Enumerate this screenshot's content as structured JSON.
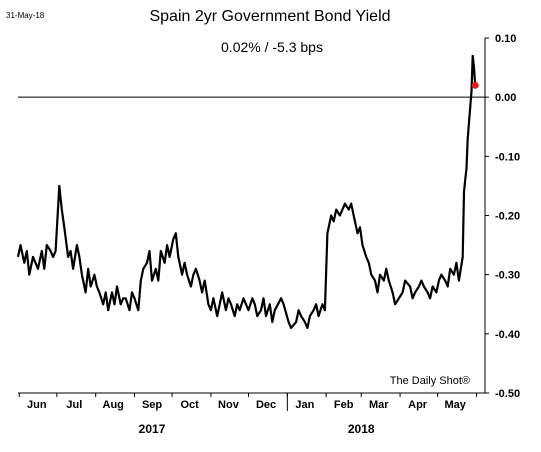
{
  "chart_data": {
    "type": "line",
    "title": "Spain 2yr Government Bond Yield",
    "subtitle": "0.02%  /  -5.3 bps",
    "date_stamp": "31-May-18",
    "source": "The Daily Shot®",
    "ylim": [
      -0.5,
      0.1
    ],
    "y_ticks": [
      0.1,
      0.0,
      -0.1,
      -0.2,
      -0.3,
      -0.4,
      -0.5
    ],
    "y_tick_labels": [
      "0.10",
      "0.00",
      "-0.10",
      "-0.20",
      "-0.30",
      "-0.40",
      "-0.50"
    ],
    "reference_line": 0.0,
    "grid": false,
    "x_months": [
      "Jun",
      "Jul",
      "Aug",
      "Sep",
      "Oct",
      "Nov",
      "Dec",
      "Jan",
      "Feb",
      "Mar",
      "Apr",
      "May"
    ],
    "x_years": [
      "2017",
      "2018"
    ],
    "line_color": "#000000",
    "marker_color": "#e8191b",
    "last_value": 0.02,
    "series": [
      {
        "x": [
          "2017-05-31",
          "2017-06-02",
          "2017-06-05",
          "2017-06-07",
          "2017-06-09",
          "2017-06-12",
          "2017-06-14",
          "2017-06-16",
          "2017-06-19",
          "2017-06-21",
          "2017-06-23",
          "2017-06-26",
          "2017-06-28",
          "2017-06-30",
          "2017-07-03",
          "2017-07-05",
          "2017-07-07",
          "2017-07-10",
          "2017-07-12",
          "2017-07-14",
          "2017-07-17",
          "2017-07-19",
          "2017-07-21",
          "2017-07-24",
          "2017-07-26",
          "2017-07-28",
          "2017-07-31",
          "2017-08-02",
          "2017-08-04",
          "2017-08-07",
          "2017-08-09",
          "2017-08-11",
          "2017-08-14",
          "2017-08-16",
          "2017-08-18",
          "2017-08-21",
          "2017-08-23",
          "2017-08-25",
          "2017-08-28",
          "2017-08-30",
          "2017-09-01",
          "2017-09-04",
          "2017-09-06",
          "2017-09-08",
          "2017-09-11",
          "2017-09-13",
          "2017-09-15",
          "2017-09-18",
          "2017-09-20",
          "2017-09-22",
          "2017-09-25",
          "2017-09-27",
          "2017-09-29",
          "2017-10-02",
          "2017-10-04",
          "2017-10-06",
          "2017-10-09",
          "2017-10-11",
          "2017-10-13",
          "2017-10-16",
          "2017-10-18",
          "2017-10-20",
          "2017-10-23",
          "2017-10-25",
          "2017-10-27",
          "2017-10-30",
          "2017-11-01",
          "2017-11-03",
          "2017-11-06",
          "2017-11-08",
          "2017-11-10",
          "2017-11-13",
          "2017-11-15",
          "2017-11-17",
          "2017-11-20",
          "2017-11-22",
          "2017-11-24",
          "2017-11-27",
          "2017-11-29",
          "2017-12-01",
          "2017-12-04",
          "2017-12-06",
          "2017-12-08",
          "2017-12-11",
          "2017-12-13",
          "2017-12-15",
          "2017-12-18",
          "2017-12-20",
          "2017-12-22",
          "2017-12-27",
          "2017-12-29",
          "2018-01-02",
          "2018-01-04",
          "2018-01-08",
          "2018-01-10",
          "2018-01-12",
          "2018-01-15",
          "2018-01-17",
          "2018-01-19",
          "2018-01-22",
          "2018-01-24",
          "2018-01-26",
          "2018-01-29",
          "2018-01-31",
          "2018-02-02",
          "2018-02-05",
          "2018-02-07",
          "2018-02-09",
          "2018-02-12",
          "2018-02-14",
          "2018-02-16",
          "2018-02-19",
          "2018-02-21",
          "2018-02-23",
          "2018-02-26",
          "2018-02-28",
          "2018-03-02",
          "2018-03-05",
          "2018-03-07",
          "2018-03-09",
          "2018-03-12",
          "2018-03-14",
          "2018-03-16",
          "2018-03-19",
          "2018-03-21",
          "2018-03-23",
          "2018-03-26",
          "2018-03-28",
          "2018-04-03",
          "2018-04-05",
          "2018-04-09",
          "2018-04-11",
          "2018-04-13",
          "2018-04-16",
          "2018-04-18",
          "2018-04-20",
          "2018-04-23",
          "2018-04-25",
          "2018-04-27",
          "2018-04-30",
          "2018-05-02",
          "2018-05-04",
          "2018-05-07",
          "2018-05-09",
          "2018-05-11",
          "2018-05-14",
          "2018-05-16",
          "2018-05-18",
          "2018-05-21",
          "2018-05-22",
          "2018-05-23",
          "2018-05-24",
          "2018-05-25",
          "2018-05-28",
          "2018-05-29",
          "2018-05-30",
          "2018-05-31"
        ],
        "values": [
          -0.27,
          -0.25,
          -0.28,
          -0.26,
          -0.3,
          -0.27,
          -0.28,
          -0.29,
          -0.26,
          -0.29,
          -0.25,
          -0.26,
          -0.27,
          -0.26,
          -0.15,
          -0.19,
          -0.22,
          -0.27,
          -0.26,
          -0.29,
          -0.25,
          -0.27,
          -0.3,
          -0.33,
          -0.29,
          -0.32,
          -0.3,
          -0.32,
          -0.33,
          -0.35,
          -0.33,
          -0.36,
          -0.33,
          -0.35,
          -0.32,
          -0.35,
          -0.34,
          -0.34,
          -0.36,
          -0.33,
          -0.34,
          -0.36,
          -0.31,
          -0.29,
          -0.28,
          -0.26,
          -0.31,
          -0.29,
          -0.31,
          -0.26,
          -0.28,
          -0.25,
          -0.27,
          -0.24,
          -0.23,
          -0.27,
          -0.3,
          -0.28,
          -0.3,
          -0.32,
          -0.3,
          -0.29,
          -0.31,
          -0.33,
          -0.31,
          -0.35,
          -0.36,
          -0.34,
          -0.37,
          -0.35,
          -0.33,
          -0.36,
          -0.34,
          -0.35,
          -0.37,
          -0.35,
          -0.36,
          -0.34,
          -0.35,
          -0.36,
          -0.34,
          -0.35,
          -0.37,
          -0.36,
          -0.34,
          -0.37,
          -0.35,
          -0.38,
          -0.36,
          -0.34,
          -0.35,
          -0.38,
          -0.39,
          -0.38,
          -0.36,
          -0.37,
          -0.38,
          -0.39,
          -0.37,
          -0.36,
          -0.35,
          -0.37,
          -0.35,
          -0.36,
          -0.23,
          -0.2,
          -0.21,
          -0.19,
          -0.2,
          -0.19,
          -0.18,
          -0.19,
          -0.18,
          -0.2,
          -0.23,
          -0.22,
          -0.25,
          -0.27,
          -0.28,
          -0.3,
          -0.31,
          -0.33,
          -0.3,
          -0.31,
          -0.29,
          -0.31,
          -0.33,
          -0.35,
          -0.33,
          -0.31,
          -0.32,
          -0.34,
          -0.33,
          -0.32,
          -0.31,
          -0.32,
          -0.33,
          -0.34,
          -0.32,
          -0.33,
          -0.31,
          -0.3,
          -0.31,
          -0.32,
          -0.29,
          -0.3,
          -0.28,
          -0.31,
          -0.27,
          -0.16,
          -0.14,
          -0.12,
          -0.07,
          0.01,
          0.07,
          0.05,
          0.02
        ]
      }
    ]
  }
}
